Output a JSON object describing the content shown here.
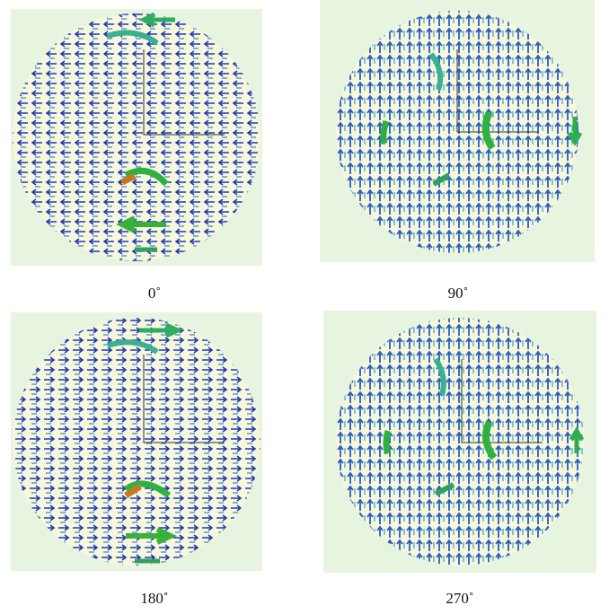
{
  "panels": [
    {
      "label": "0˚"
    },
    {
      "label": "90˚"
    },
    {
      "label": "180˚"
    },
    {
      "label": "270˚"
    }
  ]
}
